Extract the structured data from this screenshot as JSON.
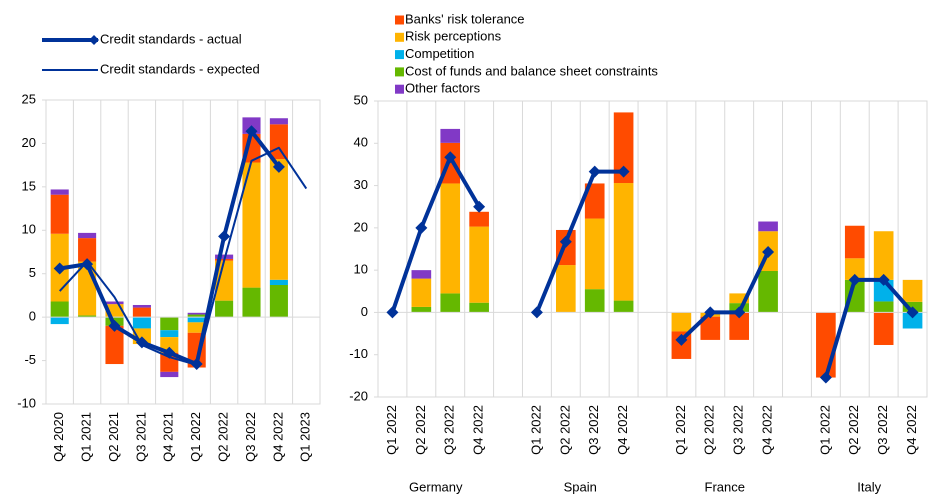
{
  "chart_data": [
    {
      "type": "bar",
      "categories": [
        "Q4 2020",
        "Q1 2021",
        "Q2 2021",
        "Q3 2021",
        "Q4 2021",
        "Q1 2022",
        "Q2 2022",
        "Q3 2022",
        "Q4 2022",
        "Q1 2023"
      ],
      "series": [
        {
          "color": "#ff4b00",
          "values": [
            4.5,
            2.7,
            -4.4,
            1.1,
            -2.2,
            -4.0,
            0.2,
            3.3,
            4.0,
            null
          ]
        },
        {
          "color": "#ffb400",
          "values": [
            7.8,
            6.2,
            1.5,
            -1.8,
            -1.8,
            -1.2,
            4.6,
            14.4,
            13.9,
            null
          ]
        },
        {
          "color": "#00b1ea",
          "values": [
            -0.8,
            0,
            0,
            -1.3,
            -0.8,
            -0.6,
            0,
            0,
            0.6,
            null
          ]
        },
        {
          "color": "#65b800",
          "values": [
            1.8,
            0.2,
            -1.0,
            0,
            -1.5,
            0.3,
            1.9,
            3.4,
            3.7,
            null
          ]
        },
        {
          "color": "#8139c6",
          "values": [
            0.6,
            0.6,
            0.3,
            0.3,
            -0.6,
            0.2,
            0.5,
            1.9,
            0.7,
            null
          ]
        },
        {
          "type": "line",
          "name": "Credit standards - actual",
          "color": "#003299",
          "marker": "diamond",
          "values": [
            5.6,
            6.1,
            -1.0,
            -2.9,
            -4.1,
            -5.4,
            9.3,
            21.4,
            17.3,
            null
          ]
        },
        {
          "type": "line",
          "name": "Credit standards - expected",
          "color": "#003299",
          "values": [
            3.0,
            6.4,
            2.3,
            -3.2,
            -4.6,
            -5.5,
            6.5,
            18.0,
            19.5,
            14.8
          ]
        }
      ],
      "ylim": [
        -10,
        25
      ],
      "yticks": [
        -10,
        -5,
        0,
        5,
        10,
        15,
        20,
        25
      ]
    },
    {
      "type": "bar",
      "categories": [
        "Q1 2022",
        "Q2 2022",
        "Q3 2022",
        "Q4 2022",
        null,
        "Q1 2022",
        "Q2 2022",
        "Q3 2022",
        "Q4 2022",
        null,
        "Q1 2022",
        "Q2 2022",
        "Q3 2022",
        "Q4 2022",
        null,
        "Q1 2022",
        "Q2 2022",
        "Q3 2022",
        "Q4 2022"
      ],
      "groups": [
        "Germany",
        "Spain",
        "France",
        "Italy"
      ],
      "series": [
        {
          "name": "Banks' risk tolerance",
          "color": "#ff4b00",
          "values": [
            null,
            0,
            9.6,
            3.5,
            null,
            null,
            8.3,
            8.3,
            16.7,
            null,
            -6.5,
            -5.5,
            -6.5,
            0,
            null,
            -15.4,
            7.7,
            -7.7,
            0
          ]
        },
        {
          "name": "Risk perceptions",
          "color": "#ffb400",
          "values": [
            null,
            6.7,
            26,
            18,
            null,
            null,
            11.2,
            16.7,
            27.8,
            null,
            -4.5,
            -1.0,
            2.3,
            9.4,
            null,
            0,
            5.1,
            11.5,
            5.2
          ]
        },
        {
          "name": "Competition",
          "color": "#00b1ea",
          "values": [
            null,
            0,
            0,
            0,
            null,
            null,
            0,
            0,
            0,
            null,
            0,
            0,
            0,
            0,
            null,
            0,
            0,
            5.1,
            -3.8
          ]
        },
        {
          "name": "Cost of funds and balance sheet constraints",
          "color": "#65b800",
          "values": [
            null,
            1.3,
            4.5,
            2.3,
            null,
            null,
            0,
            5.5,
            2.8,
            null,
            0,
            0,
            2.2,
            9.8,
            null,
            0,
            7.7,
            2.6,
            2.5
          ]
        },
        {
          "name": "Other factors",
          "color": "#8139c6",
          "values": [
            null,
            2,
            3.3,
            0,
            null,
            null,
            0,
            0,
            0,
            null,
            0,
            0,
            0,
            2.3,
            null,
            0,
            0,
            0,
            0
          ]
        },
        {
          "type": "line",
          "color": "#003299",
          "marker": "diamond",
          "values": [
            0,
            20,
            36.7,
            25,
            null,
            0,
            16.7,
            33.3,
            33.3,
            null,
            -6.5,
            0,
            0,
            14.3,
            null,
            -15.4,
            7.7,
            7.7,
            0
          ]
        }
      ],
      "ylim": [
        -20,
        50
      ],
      "yticks": [
        -20,
        -10,
        0,
        10,
        20,
        30,
        40,
        50
      ]
    }
  ]
}
